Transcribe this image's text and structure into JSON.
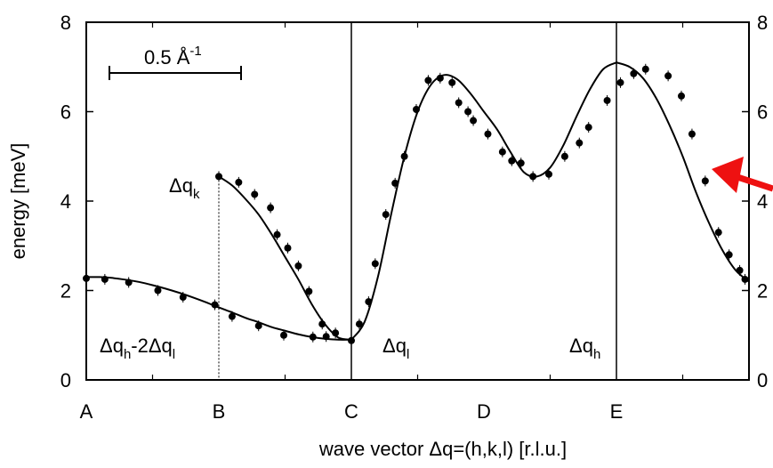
{
  "chart_data": {
    "type": "scatter",
    "ylabel": "energy [meV]",
    "xlabel": "wave vector  Δq=(h,k,l) [r.l.u.]",
    "ylim": [
      0,
      8
    ],
    "y_ticks": [
      0,
      2,
      4,
      6,
      8
    ],
    "x_tick_labels": [
      "A",
      "B",
      "C",
      "D",
      "E"
    ],
    "scale_bar_label": "0.5 Å",
    "scale_bar_exponent": "-1",
    "segment_labels": [
      {
        "main": "Δq",
        "sub": "h",
        "rest": "-2Δq",
        "sub2": "l"
      },
      {
        "main": "Δq",
        "sub": "k"
      },
      {
        "main": "Δq",
        "sub": "l"
      },
      {
        "main": "Δq",
        "sub": "h"
      }
    ],
    "grid": false,
    "annotation_arrow_color": "#ee1111",
    "series": [
      {
        "x": [
          0,
          0.14,
          0.32,
          0.54,
          0.73,
          0.97,
          1.1,
          1.3,
          1.49,
          1.71,
          1.81,
          1.88
        ],
        "y": [
          2.27,
          2.25,
          2.18,
          2.0,
          1.85,
          1.68,
          1.42,
          1.21,
          1.0,
          0.96,
          0.97,
          1.05
        ]
      },
      {
        "x": [
          1.0,
          1.15,
          1.27,
          1.39,
          1.44,
          1.52,
          1.6,
          1.68,
          1.78
        ],
        "y": [
          4.55,
          4.42,
          4.15,
          3.85,
          3.25,
          2.95,
          2.55,
          1.98,
          1.25
        ]
      },
      {
        "x": [
          2.0,
          2.06,
          2.13,
          2.18,
          2.26,
          2.33,
          2.4,
          2.49,
          2.58,
          2.67,
          2.76,
          2.81,
          2.88,
          2.92,
          3.03,
          3.14,
          3.21,
          3.28,
          3.37,
          3.49,
          3.61,
          3.72,
          3.79,
          3.93
        ],
        "y": [
          0.88,
          1.25,
          1.75,
          2.6,
          3.7,
          4.4,
          5.0,
          6.05,
          6.7,
          6.75,
          6.65,
          6.2,
          6.0,
          5.8,
          5.5,
          5.1,
          4.9,
          4.85,
          4.55,
          4.6,
          5.0,
          5.3,
          5.65,
          6.25
        ]
      },
      {
        "x": [
          4.03,
          4.13,
          4.22,
          4.39,
          4.49,
          4.57,
          4.67,
          4.77,
          4.85,
          4.93,
          4.97
        ],
        "y": [
          6.65,
          6.85,
          6.95,
          6.8,
          6.35,
          5.5,
          4.45,
          3.3,
          2.8,
          2.45,
          2.25
        ]
      }
    ],
    "fit_curves": [
      {
        "x": [
          0,
          0.1,
          0.2,
          0.3,
          0.4,
          0.5,
          0.6,
          0.7,
          0.8,
          0.9,
          1.0,
          1.1,
          1.2,
          1.3,
          1.4,
          1.5,
          1.6,
          1.7,
          1.8,
          1.9,
          2.0
        ],
        "y": [
          2.3,
          2.3,
          2.28,
          2.24,
          2.19,
          2.12,
          2.04,
          1.95,
          1.85,
          1.74,
          1.62,
          1.51,
          1.39,
          1.29,
          1.18,
          1.1,
          1.02,
          0.96,
          0.92,
          0.9,
          0.9
        ]
      },
      {
        "x": [
          1.0,
          1.1,
          1.2,
          1.3,
          1.4,
          1.5,
          1.6,
          1.7,
          1.8,
          1.9,
          2.0
        ],
        "y": [
          4.55,
          4.35,
          4.05,
          3.7,
          3.25,
          2.75,
          2.25,
          1.7,
          1.25,
          0.95,
          0.9
        ]
      },
      {
        "x": [
          2.0,
          2.1,
          2.2,
          2.3,
          2.4,
          2.5,
          2.6,
          2.7,
          2.8,
          2.9,
          3.0,
          3.1,
          3.2,
          3.3,
          3.4,
          3.5,
          3.6,
          3.7,
          3.8,
          3.9,
          4.0
        ],
        "y": [
          0.9,
          1.3,
          2.3,
          3.7,
          5.0,
          6.0,
          6.6,
          6.82,
          6.72,
          6.4,
          6.0,
          5.6,
          5.1,
          4.65,
          4.55,
          4.75,
          5.25,
          5.9,
          6.5,
          6.95,
          7.1
        ]
      },
      {
        "x": [
          4.0,
          4.1,
          4.2,
          4.3,
          4.4,
          4.5,
          4.6,
          4.7,
          4.8,
          4.9,
          5.0
        ],
        "y": [
          7.1,
          7.0,
          6.75,
          6.3,
          5.7,
          5.0,
          4.2,
          3.5,
          2.9,
          2.45,
          2.2
        ]
      }
    ]
  }
}
